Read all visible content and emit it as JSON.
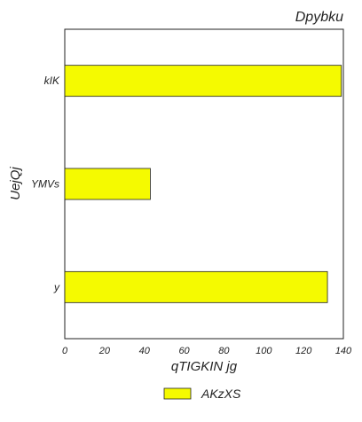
{
  "chart_data": {
    "type": "bar",
    "orientation": "horizontal",
    "title": "Dpybku",
    "xlabel": "qTIGKIN jg",
    "ylabel": "UejQj",
    "categories": [
      "kIK",
      "YMVs",
      "y"
    ],
    "series": [
      {
        "name": "AKzXS",
        "values": [
          139,
          43,
          132
        ],
        "color": "#f5fa00"
      }
    ],
    "xlim": [
      0,
      140
    ],
    "xticks": [
      "0",
      "20",
      "40",
      "60",
      "80",
      "100",
      "120",
      "140"
    ],
    "grid": false,
    "legend_position": "bottom-center"
  }
}
